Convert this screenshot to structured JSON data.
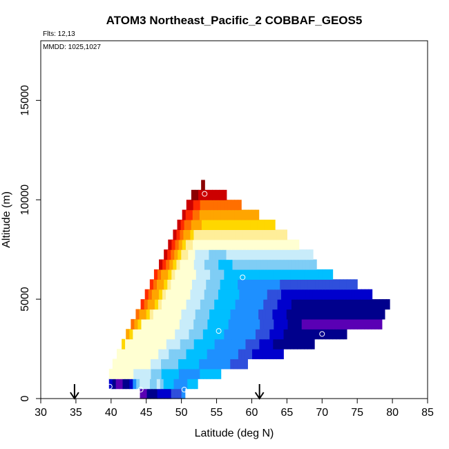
{
  "chart_data": {
    "type": "heatmap",
    "title": "ATOM3 Northeast_Pacific_2 COBBAF_GEOS5",
    "annotations": [
      "Flts: 12,13",
      "MMDD: 1025,1027"
    ],
    "xlabel": "Latitude (deg N)",
    "ylabel": "Altitude (m)",
    "xlim": [
      30,
      85
    ],
    "ylim": [
      0,
      18000
    ],
    "x_ticks": [
      "30",
      "35",
      "40",
      "45",
      "50",
      "55",
      "60",
      "65",
      "70",
      "75",
      "80",
      "85"
    ],
    "y_ticks": [
      "0",
      "5000",
      "10000",
      "15000"
    ],
    "grid": false,
    "palette": [
      "#5a00b4",
      "#00008c",
      "#0000cd",
      "#2f4fdc",
      "#1e90ff",
      "#00bfff",
      "#7fcdf5",
      "#c8ecfa",
      "#ffffd2",
      "#ffee99",
      "#ffd700",
      "#ffa500",
      "#ff6f00",
      "#ff2a00",
      "#cc0000",
      "#8b0000"
    ],
    "value_scale": "palette index 0 (low, purple) to 15 (high, dark red); no colorbar shown",
    "cell_height_m": 500,
    "rows": [
      {
        "alt": 0,
        "lat_start": 44.1,
        "lat_end": 50.5,
        "values": [
          0,
          0,
          1,
          1,
          1,
          2,
          2,
          2,
          2,
          3,
          3,
          3,
          4
        ]
      },
      {
        "alt": 500,
        "lat_start": 39.7,
        "lat_end": 52.3,
        "values": [
          2,
          1,
          0,
          0,
          1,
          1,
          2,
          4,
          6,
          7,
          7,
          7,
          6,
          6,
          7,
          6,
          5,
          5,
          5,
          4,
          4,
          4,
          4,
          5,
          5,
          5
        ]
      },
      {
        "alt": 1000,
        "lat_start": 39.7,
        "lat_end": 55.6,
        "values": [
          8,
          8,
          8,
          8,
          8,
          8,
          8,
          7,
          7,
          7,
          7,
          7,
          6,
          6,
          6,
          5,
          5,
          5,
          5,
          5,
          4,
          4,
          4,
          4,
          4,
          4,
          5,
          5,
          5,
          5,
          5,
          5
        ]
      },
      {
        "alt": 1500,
        "lat_start": 40.2,
        "lat_end": 59.4,
        "values": [
          8,
          8,
          8,
          8,
          8,
          8,
          8,
          8,
          8,
          8,
          8,
          7,
          7,
          7,
          6,
          6,
          6,
          6,
          6,
          5,
          5,
          5,
          5,
          5,
          5,
          4,
          4,
          4,
          4,
          4,
          4,
          4,
          4,
          4,
          3,
          3,
          3,
          3,
          3
        ]
      },
      {
        "alt": 2000,
        "lat_start": 40.8,
        "lat_end": 64.5,
        "values": [
          8,
          8,
          8,
          8,
          8,
          8,
          8,
          8,
          8,
          8,
          8,
          8,
          7,
          7,
          7,
          6,
          6,
          6,
          6,
          6,
          5,
          5,
          5,
          5,
          5,
          5,
          4,
          4,
          4,
          4,
          4,
          4,
          4,
          4,
          4,
          3,
          3,
          3,
          3,
          2,
          2,
          2,
          2,
          2,
          2,
          2,
          2,
          2
        ]
      },
      {
        "alt": 2500,
        "lat_start": 41.5,
        "lat_end": 68.9,
        "values": [
          10,
          8,
          8,
          8,
          8,
          8,
          8,
          8,
          8,
          8,
          8,
          8,
          8,
          7,
          7,
          7,
          7,
          6,
          6,
          6,
          6,
          5,
          5,
          5,
          5,
          5,
          5,
          4,
          4,
          4,
          4,
          4,
          4,
          4,
          4,
          4,
          3,
          3,
          3,
          3,
          2,
          2,
          2,
          2,
          1,
          1,
          1,
          1,
          1,
          1,
          1,
          1,
          1,
          1,
          1,
          1
        ]
      },
      {
        "alt": 3000,
        "lat_start": 42.1,
        "lat_end": 73.5,
        "values": [
          11,
          10,
          8,
          8,
          8,
          8,
          8,
          8,
          8,
          8,
          8,
          8,
          8,
          8,
          7,
          7,
          7,
          7,
          6,
          6,
          6,
          6,
          5,
          5,
          5,
          5,
          5,
          5,
          4,
          4,
          4,
          4,
          4,
          4,
          4,
          4,
          4,
          3,
          3,
          3,
          3,
          2,
          2,
          2,
          2,
          1,
          1,
          1,
          1,
          1,
          1,
          1,
          1,
          1,
          1,
          1,
          1,
          1,
          1,
          1,
          1,
          1,
          1
        ]
      },
      {
        "alt": 3500,
        "lat_start": 42.8,
        "lat_end": 78.5,
        "values": [
          12,
          11,
          10,
          8,
          8,
          8,
          8,
          8,
          8,
          8,
          8,
          8,
          8,
          8,
          7,
          7,
          7,
          7,
          6,
          6,
          6,
          6,
          5,
          5,
          5,
          5,
          5,
          5,
          4,
          4,
          4,
          4,
          4,
          4,
          4,
          4,
          4,
          3,
          3,
          3,
          3,
          2,
          2,
          2,
          2,
          1,
          1,
          1,
          1,
          0,
          0,
          0,
          0,
          0,
          0,
          0,
          0,
          0,
          0,
          0,
          0,
          0,
          0,
          0,
          0,
          0,
          0,
          0,
          0,
          0,
          0,
          0
        ]
      },
      {
        "alt": 4000,
        "lat_start": 43.5,
        "lat_end": 78.9,
        "values": [
          12,
          11,
          11,
          10,
          9,
          8,
          8,
          8,
          8,
          8,
          8,
          8,
          8,
          7,
          7,
          7,
          7,
          6,
          6,
          6,
          6,
          5,
          5,
          5,
          5,
          5,
          5,
          4,
          4,
          4,
          4,
          4,
          4,
          4,
          4,
          3,
          3,
          3,
          3,
          2,
          2,
          2,
          2,
          1,
          1,
          1,
          1,
          1,
          1,
          1,
          1,
          1,
          1,
          1,
          1,
          1,
          1,
          1,
          1,
          1,
          1,
          1,
          1,
          1,
          1,
          1,
          1,
          1,
          1,
          1,
          1
        ]
      },
      {
        "alt": 4500,
        "lat_start": 44.2,
        "lat_end": 79.6,
        "values": [
          13,
          12,
          11,
          11,
          10,
          9,
          8,
          8,
          8,
          8,
          8,
          8,
          8,
          7,
          7,
          7,
          7,
          6,
          6,
          6,
          6,
          5,
          5,
          5,
          5,
          5,
          5,
          4,
          4,
          4,
          4,
          4,
          4,
          4,
          4,
          3,
          3,
          3,
          3,
          2,
          2,
          2,
          2,
          1,
          1,
          1,
          1,
          1,
          1,
          1,
          1,
          1,
          1,
          1,
          1,
          1,
          1,
          1,
          1,
          1,
          1,
          1,
          1,
          1,
          1,
          1,
          1,
          1,
          1,
          1,
          1
        ]
      },
      {
        "alt": 5000,
        "lat_start": 44.8,
        "lat_end": 77.1,
        "values": [
          13,
          12,
          11,
          11,
          10,
          9,
          8,
          8,
          8,
          8,
          8,
          8,
          8,
          7,
          7,
          7,
          7,
          6,
          6,
          6,
          6,
          5,
          5,
          5,
          5,
          5,
          5,
          4,
          4,
          4,
          4,
          4,
          4,
          4,
          4,
          3,
          3,
          3,
          3,
          2,
          2,
          2,
          2,
          2,
          2,
          2,
          2,
          2,
          2,
          2,
          2,
          2,
          2,
          2,
          2,
          2,
          2,
          2,
          2,
          2,
          2,
          2,
          2,
          2,
          2
        ]
      },
      {
        "alt": 5500,
        "lat_start": 45.5,
        "lat_end": 75.0,
        "values": [
          13,
          12,
          11,
          11,
          10,
          9,
          8,
          8,
          8,
          8,
          8,
          8,
          7,
          7,
          7,
          7,
          6,
          6,
          6,
          6,
          5,
          5,
          5,
          5,
          5,
          4,
          4,
          4,
          4,
          4,
          4,
          4,
          4,
          4,
          4,
          4,
          4,
          3,
          3,
          3,
          3,
          3,
          3,
          3,
          3,
          3,
          3,
          3,
          3,
          3,
          3,
          3,
          3,
          3,
          3,
          3,
          3,
          3,
          3
        ]
      },
      {
        "alt": 6000,
        "lat_start": 46.1,
        "lat_end": 71.5,
        "values": [
          13,
          12,
          11,
          11,
          10,
          9,
          8,
          8,
          8,
          8,
          8,
          8,
          7,
          7,
          7,
          7,
          6,
          6,
          6,
          6,
          5,
          5,
          5,
          5,
          5,
          5,
          5,
          5,
          5,
          5,
          5,
          5,
          5,
          5,
          5,
          5,
          5,
          5,
          5,
          5,
          5,
          5,
          5,
          5,
          5,
          5,
          5,
          5,
          5,
          5,
          5
        ]
      },
      {
        "alt": 6500,
        "lat_start": 46.8,
        "lat_end": 69.2,
        "values": [
          14,
          13,
          12,
          11,
          10,
          9,
          8,
          8,
          8,
          8,
          7,
          7,
          7,
          6,
          6,
          6,
          6,
          5,
          5,
          5,
          5,
          6,
          6,
          6,
          6,
          6,
          6,
          6,
          6,
          6,
          6,
          6,
          6,
          6,
          6,
          6,
          6,
          6,
          6,
          6,
          6,
          6,
          6,
          6,
          6
        ]
      },
      {
        "alt": 7000,
        "lat_start": 47.5,
        "lat_end": 68.7,
        "values": [
          14,
          13,
          12,
          11,
          10,
          9,
          9,
          8,
          8,
          7,
          7,
          7,
          7,
          6,
          6,
          6,
          6,
          6,
          7,
          7,
          7,
          7,
          7,
          7,
          7,
          7,
          7,
          7,
          7,
          7,
          7,
          7,
          7,
          7,
          7,
          7,
          7,
          7,
          7,
          7,
          7,
          7,
          7
        ]
      },
      {
        "alt": 7500,
        "lat_start": 48.1,
        "lat_end": 66.7,
        "values": [
          14,
          13,
          12,
          11,
          10,
          9,
          9,
          8,
          8,
          8,
          8,
          8,
          8,
          8,
          8,
          8,
          8,
          8,
          8,
          8,
          8,
          8,
          8,
          8,
          8,
          8,
          8,
          8,
          8,
          8,
          8,
          8,
          8,
          8,
          8,
          8,
          8
        ]
      },
      {
        "alt": 8000,
        "lat_start": 48.8,
        "lat_end": 65.0,
        "values": [
          14,
          13,
          12,
          11,
          11,
          10,
          9,
          9,
          9,
          9,
          9,
          9,
          9,
          9,
          9,
          9,
          9,
          9,
          9,
          9,
          9,
          9,
          9,
          9,
          9,
          9,
          9,
          9,
          9,
          9,
          9,
          9,
          9
        ]
      },
      {
        "alt": 8500,
        "lat_start": 49.4,
        "lat_end": 63.3,
        "values": [
          14,
          13,
          12,
          12,
          11,
          11,
          11,
          10,
          10,
          10,
          10,
          10,
          10,
          10,
          10,
          10,
          10,
          10,
          10,
          10,
          10,
          10,
          10,
          10,
          10,
          10,
          10,
          10
        ]
      },
      {
        "alt": 9000,
        "lat_start": 50.1,
        "lat_end": 61.0,
        "values": [
          14,
          13,
          13,
          12,
          12,
          11,
          11,
          11,
          11,
          11,
          11,
          11,
          11,
          11,
          11,
          11,
          11,
          11,
          11,
          11,
          11,
          11
        ]
      },
      {
        "alt": 9500,
        "lat_start": 50.7,
        "lat_end": 58.5,
        "values": [
          14,
          14,
          13,
          13,
          12,
          12,
          12,
          12,
          12,
          12,
          12,
          12,
          12,
          12,
          12,
          12
        ]
      },
      {
        "alt": 10000,
        "lat_start": 51.4,
        "lat_end": 56.4,
        "values": [
          15,
          15,
          14,
          14,
          14,
          14,
          14,
          14,
          14,
          14
        ]
      },
      {
        "alt": 10500,
        "lat_start": 52.8,
        "lat_end": 53.3,
        "values": [
          15
        ]
      }
    ],
    "markers": [
      {
        "lat": 39.8,
        "alt": 600
      },
      {
        "lat": 44.2,
        "alt": 450
      },
      {
        "lat": 50.4,
        "alt": 450
      },
      {
        "lat": 55.3,
        "alt": 3400
      },
      {
        "lat": 58.7,
        "alt": 6100
      },
      {
        "lat": 70.0,
        "alt": 3250
      },
      {
        "lat": 78.0,
        "alt": 3050
      },
      {
        "lat": 79.4,
        "alt": 4200
      },
      {
        "lat": 53.3,
        "alt": 10300
      }
    ],
    "arrows": [
      {
        "lat": 34.8
      },
      {
        "lat": 61.1
      }
    ]
  }
}
